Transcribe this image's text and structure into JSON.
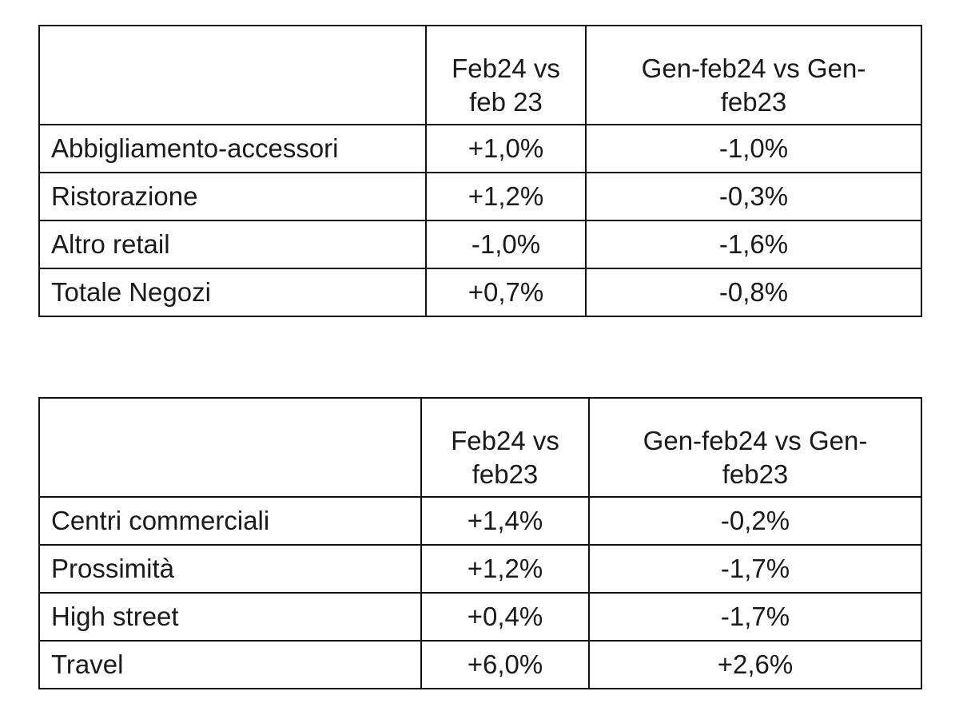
{
  "tables": [
    {
      "header": {
        "blank": "",
        "col1_line1": "Feb24 vs",
        "col1_line2": "feb 23",
        "col2_line1": "Gen-feb24 vs Gen-",
        "col2_line2": "feb23"
      },
      "rows": [
        {
          "label": "Abbigliamento-accessori",
          "v1": "+1,0%",
          "v2": "-1,0%"
        },
        {
          "label": "Ristorazione",
          "v1": "+1,2%",
          "v2": "-0,3%"
        },
        {
          "label": "Altro retail",
          "v1": "-1,0%",
          "v2": "-1,6%"
        },
        {
          "label": "Totale Negozi",
          "v1": "+0,7%",
          "v2": "-0,8%"
        }
      ]
    },
    {
      "header": {
        "blank": "",
        "col1_line1": "Feb24 vs",
        "col1_line2": "feb23",
        "col2_line1": "Gen-feb24 vs Gen-",
        "col2_line2": "feb23"
      },
      "rows": [
        {
          "label": "Centri commerciali",
          "v1": "+1,4%",
          "v2": "-0,2%"
        },
        {
          "label": "Prossimità",
          "v1": "+1,2%",
          "v2": "-1,7%"
        },
        {
          "label": "High street",
          "v1": "+0,4%",
          "v2": "-1,7%"
        },
        {
          "label": "Travel",
          "v1": "+6,0%",
          "v2": "+2,6%"
        }
      ]
    }
  ]
}
